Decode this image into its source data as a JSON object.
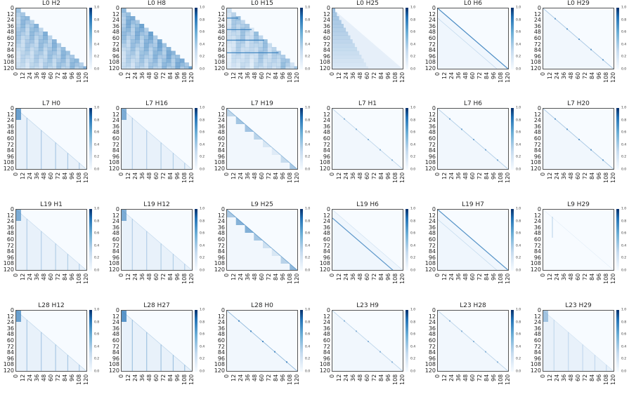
{
  "chart_data": {
    "type": "heatmap",
    "layout": "grid of 24 attention heatmaps (4 rows x 6 columns)",
    "colormap": "Blues",
    "x_ticks": [
      "0",
      "12",
      "24",
      "36",
      "48",
      "60",
      "72",
      "84",
      "96",
      "108",
      "120"
    ],
    "y_ticks": [
      "0",
      "12",
      "24",
      "36",
      "48",
      "60",
      "72",
      "84",
      "96",
      "108",
      "120"
    ],
    "colorbar_ticks": [
      "0.0",
      "0.2",
      "0.4",
      "0.6",
      "0.8",
      "1.0"
    ],
    "value_range": [
      0.0,
      1.0
    ],
    "sequence_length": 128,
    "panels": [
      {
        "title": "L0 H2",
        "pattern": "dense_triangle",
        "strength": 0.55
      },
      {
        "title": "L0 H8",
        "pattern": "dense_triangle",
        "strength": 0.65
      },
      {
        "title": "L0 H15",
        "pattern": "dense_triangle_streaks",
        "strength": 0.5
      },
      {
        "title": "L0 H25",
        "pattern": "fading_triangle",
        "strength": 0.45
      },
      {
        "title": "L0 H6",
        "pattern": "diagonal",
        "strength": 0.8
      },
      {
        "title": "L0 H29",
        "pattern": "faint_diagonal",
        "strength": 0.35
      },
      {
        "title": "L7 H0",
        "pattern": "sparse_columns",
        "strength": 0.35
      },
      {
        "title": "L7 H16",
        "pattern": "sparse_columns",
        "strength": 0.3
      },
      {
        "title": "L7 H19",
        "pattern": "diagonal_blocks",
        "strength": 0.4
      },
      {
        "title": "L7 H1",
        "pattern": "faint_diagonal",
        "strength": 0.25
      },
      {
        "title": "L7 H6",
        "pattern": "faint_diagonal",
        "strength": 0.3
      },
      {
        "title": "L7 H20",
        "pattern": "faint_diagonal",
        "strength": 0.35
      },
      {
        "title": "L19 H1",
        "pattern": "sparse_columns",
        "strength": 0.3
      },
      {
        "title": "L19 H12",
        "pattern": "sparse_columns",
        "strength": 0.3
      },
      {
        "title": "L9 H25",
        "pattern": "diagonal_blocks",
        "strength": 0.55
      },
      {
        "title": "L19 H6",
        "pattern": "offset_diagonal",
        "strength": 0.7
      },
      {
        "title": "L19 H7",
        "pattern": "diagonal",
        "strength": 0.75
      },
      {
        "title": "L9 H29",
        "pattern": "near_empty",
        "strength": 0.15
      },
      {
        "title": "L28 H12",
        "pattern": "sparse_columns",
        "strength": 0.35
      },
      {
        "title": "L28 H27",
        "pattern": "sparse_columns",
        "strength": 0.4
      },
      {
        "title": "L28 H0",
        "pattern": "faint_diagonal",
        "strength": 0.45
      },
      {
        "title": "L23 H9",
        "pattern": "faint_diagonal",
        "strength": 0.25
      },
      {
        "title": "L23 H28",
        "pattern": "faint_diagonal",
        "strength": 0.25
      },
      {
        "title": "L23 H29",
        "pattern": "sparse_columns",
        "strength": 0.2
      }
    ]
  }
}
